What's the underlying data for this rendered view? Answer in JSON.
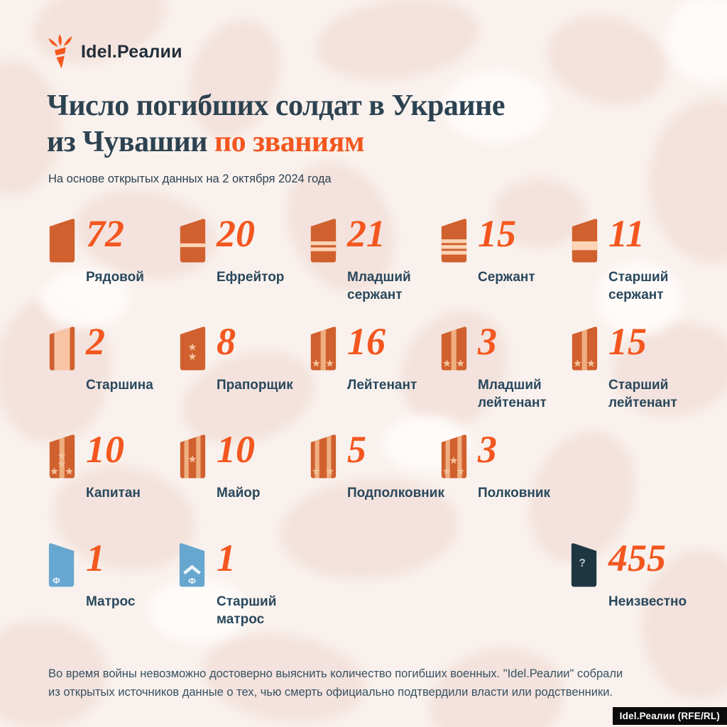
{
  "brand": {
    "logo_text": "Idel.Реалии",
    "credit": "Idel.Реалии (RFE/RL)"
  },
  "header": {
    "title_line1": "Число погибших солдат в Украине",
    "title_line2_dark": "из Чувашии",
    "title_line2_accent": "по званиям",
    "subtitle": "На основе открытых данных на 2 октября 2024 года"
  },
  "footer": {
    "note": "Во время войны невозможно достоверно выяснить количество погибших военных. \"Idel.Реалии\" собрали из открытых источников данные о тех, чью смерть официально подтвердили власти или родственники."
  },
  "colors": {
    "accent": "#f3571f",
    "ink": "#2c4251",
    "label_ink": "#29485c",
    "board_orange": "#d0602e",
    "board_blue": "#67a7cf",
    "board_dark": "#1e3642",
    "band_light": "#fcd4b6",
    "vstripe_light": "#efae80",
    "vwide_light": "#f9c4a4",
    "star_light": "#f2c29b",
    "glyph_light": "#eef6fb",
    "question_light": "#bcc9cf"
  },
  "chart_data": {
    "type": "pictogram",
    "title": "Число погибших солдат в Украине из Чувашии по званиям",
    "subtitle": "На основе открытых данных на 2 октября 2024 года",
    "categories": [
      "Рядовой",
      "Ефрейтор",
      "Младший сержант",
      "Сержант",
      "Старший сержант",
      "Старшина",
      "Прапорщик",
      "Лейтенант",
      "Младший лейтенант",
      "Старший лейтенант",
      "Капитан",
      "Майор",
      "Подполковник",
      "Полковник",
      "Матрос",
      "Старший матрос",
      "Неизвестно"
    ],
    "values": [
      72,
      20,
      21,
      15,
      11,
      2,
      8,
      16,
      3,
      15,
      10,
      10,
      5,
      3,
      1,
      1,
      455
    ],
    "icon_encoding": "military shoulder-board insignia per rank; orange = army, blue = navy, dark = unknown",
    "legend": "none"
  },
  "ranks": [
    {
      "label": "Рядовой",
      "value": "72",
      "row": 0,
      "col": 0,
      "icon": {
        "base": "orange"
      }
    },
    {
      "label": "Ефрейтор",
      "value": "20",
      "row": 0,
      "col": 1,
      "icon": {
        "base": "orange",
        "hbands": 1
      }
    },
    {
      "label": "Младший сержант",
      "value": "21",
      "row": 0,
      "col": 2,
      "icon": {
        "base": "orange",
        "hbands": 2
      }
    },
    {
      "label": "Сержант",
      "value": "15",
      "row": 0,
      "col": 3,
      "icon": {
        "base": "orange",
        "hbands": 3
      }
    },
    {
      "label": "Старший сержант",
      "value": "11",
      "row": 0,
      "col": 4,
      "icon": {
        "base": "orange",
        "hband_wide": true
      }
    },
    {
      "label": "Старшина",
      "value": "2",
      "row": 1,
      "col": 0,
      "icon": {
        "base": "orange",
        "vwide": true
      }
    },
    {
      "label": "Прапорщик",
      "value": "8",
      "row": 1,
      "col": 1,
      "icon": {
        "base": "orange",
        "stars": [
          [
            22,
            32
          ],
          [
            22,
            46
          ]
        ]
      }
    },
    {
      "label": "Лейтенант",
      "value": "16",
      "row": 1,
      "col": 2,
      "icon": {
        "base": "orange",
        "vstripes": 1,
        "stars": [
          [
            12,
            56
          ],
          [
            32,
            56
          ]
        ]
      }
    },
    {
      "label": "Младший лейтенант",
      "value": "3",
      "row": 1,
      "col": 3,
      "icon": {
        "base": "orange",
        "vstripes": 1,
        "stars": [
          [
            12,
            56
          ],
          [
            32,
            56
          ]
        ]
      }
    },
    {
      "label": "Старший лейтенант",
      "value": "15",
      "row": 1,
      "col": 4,
      "icon": {
        "base": "orange",
        "vstripes": 1,
        "stars": [
          [
            12,
            56
          ],
          [
            32,
            56
          ]
        ]
      }
    },
    {
      "label": "Капитан",
      "value": "10",
      "row": 2,
      "col": 0,
      "icon": {
        "base": "orange",
        "vstripes": 1,
        "stars": [
          [
            22,
            33
          ],
          [
            22,
            45
          ],
          [
            11,
            56
          ],
          [
            33,
            56
          ]
        ]
      }
    },
    {
      "label": "Майор",
      "value": "10",
      "row": 2,
      "col": 1,
      "icon": {
        "base": "orange",
        "vstripes": 2,
        "stars": [
          [
            22,
            38
          ]
        ]
      }
    },
    {
      "label": "Подполковник",
      "value": "5",
      "row": 2,
      "col": 2,
      "icon": {
        "base": "orange",
        "vstripes": 2,
        "stars": [
          [
            12,
            56
          ],
          [
            32,
            56
          ]
        ]
      }
    },
    {
      "label": "Полковник",
      "value": "3",
      "row": 2,
      "col": 3,
      "icon": {
        "base": "orange",
        "vstripes": 2,
        "stars": [
          [
            22,
            40
          ],
          [
            12,
            56
          ],
          [
            32,
            56
          ]
        ]
      }
    },
    {
      "label": "Матрос",
      "value": "1",
      "row": 3,
      "col": 0,
      "icon": {
        "base": "blue",
        "mirror": true,
        "glyph": "Ф"
      }
    },
    {
      "label": "Старший матрос",
      "value": "1",
      "row": 3,
      "col": 1,
      "icon": {
        "base": "blue",
        "mirror": true,
        "glyph": "Ф",
        "chevron": true
      }
    },
    {
      "label": "Неизвестно",
      "value": "455",
      "row": 3,
      "col": 4,
      "icon": {
        "base": "dark",
        "mirror": true,
        "glyph": "?"
      }
    }
  ]
}
